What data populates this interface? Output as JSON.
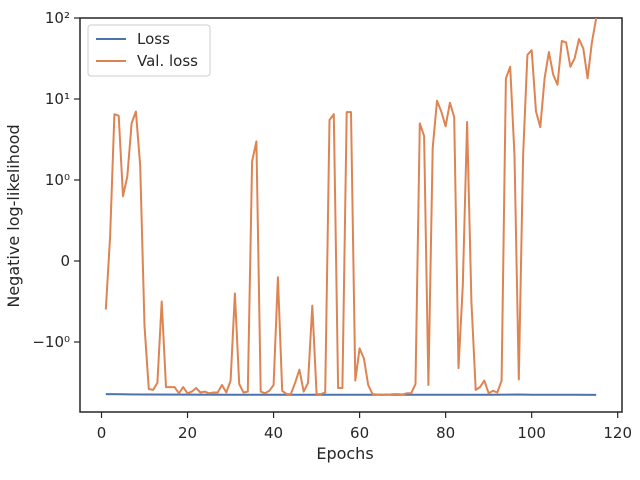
{
  "chart_data": {
    "type": "line",
    "xlabel": "Epochs",
    "ylabel": "Negative log-likelihood",
    "yscale": "symlog",
    "xlim": [
      -5,
      121
    ],
    "x_ticks": [
      0,
      20,
      40,
      60,
      80,
      100,
      120
    ],
    "y_ticks": [
      {
        "value": 100,
        "label": "10²"
      },
      {
        "value": 10,
        "label": "10¹"
      },
      {
        "value": 1,
        "label": "10⁰"
      },
      {
        "value": 0,
        "label": "0"
      },
      {
        "value": -1,
        "label": "−10⁰"
      }
    ],
    "grid": false,
    "legend_position": "top-left",
    "series": [
      {
        "name": "Loss",
        "color": "#4c72b0",
        "x": [
          1,
          5,
          10,
          20,
          30,
          40,
          50,
          60,
          70,
          80,
          90,
          97,
          100,
          110,
          115
        ],
        "y": [
          -4.4,
          -4.42,
          -4.45,
          -4.46,
          -4.47,
          -4.47,
          -4.48,
          -4.48,
          -4.48,
          -4.48,
          -4.49,
          -4.45,
          -4.48,
          -4.49,
          -4.5
        ]
      },
      {
        "name": "Val. loss",
        "color": "#dd8452",
        "x": [
          1,
          2,
          3,
          4,
          5,
          6,
          7,
          8,
          9,
          10,
          11,
          12,
          13,
          14,
          15,
          16,
          17,
          18,
          19,
          20,
          21,
          22,
          23,
          24,
          25,
          26,
          27,
          28,
          29,
          30,
          31,
          32,
          33,
          34,
          35,
          36,
          37,
          38,
          39,
          40,
          41,
          42,
          43,
          44,
          45,
          46,
          47,
          48,
          49,
          50,
          51,
          52,
          53,
          54,
          55,
          56,
          57,
          58,
          59,
          60,
          61,
          62,
          63,
          64,
          65,
          66,
          67,
          68,
          69,
          70,
          71,
          72,
          73,
          74,
          75,
          76,
          77,
          78,
          79,
          80,
          81,
          82,
          83,
          84,
          85,
          86,
          87,
          88,
          89,
          90,
          91,
          92,
          93,
          94,
          95,
          96,
          97,
          98,
          99,
          100,
          101,
          102,
          103,
          104,
          105,
          106,
          107,
          108,
          109,
          110,
          111,
          112,
          113,
          114,
          115
        ],
        "y": [
          -0.6,
          0.3,
          6.5,
          6.2,
          0.8,
          1.1,
          5.0,
          7.0,
          1.5,
          -0.8,
          -3.8,
          -3.9,
          -3.2,
          -0.5,
          -3.6,
          -3.6,
          -3.6,
          -4.3,
          -3.6,
          -4.3,
          -4.1,
          -3.7,
          -4.2,
          -4.1,
          -4.3,
          -4.2,
          -4.2,
          -3.4,
          -4.2,
          -3.0,
          -0.4,
          -3.3,
          -4.2,
          -4.1,
          1.7,
          3.0,
          -4.1,
          -4.3,
          -4.0,
          -3.4,
          -0.2,
          -4.0,
          -4.4,
          -4.4,
          -3.2,
          -2.2,
          -4.1,
          -3.2,
          -0.55,
          -4.4,
          -4.4,
          -4.2,
          5.5,
          6.5,
          -3.7,
          -3.7,
          6.9,
          6.9,
          -3.0,
          -1.2,
          -1.6,
          -3.4,
          -4.4,
          -4.45,
          -4.5,
          -4.45,
          -4.45,
          -4.4,
          -4.4,
          -4.45,
          -4.3,
          -4.3,
          -3.3,
          5.0,
          3.5,
          -3.4,
          2.5,
          9.5,
          7.0,
          4.6,
          9.0,
          6.0,
          -2.1,
          -0.3,
          5.2,
          -0.5,
          -3.9,
          -3.6,
          -3.0,
          -4.3,
          -4.0,
          -4.2,
          -3.0,
          18.0,
          25.0,
          2.0,
          -2.9,
          2.0,
          35.0,
          40.0,
          7.0,
          4.5,
          18.0,
          38.0,
          20.0,
          15.0,
          52.0,
          50.0,
          25.0,
          32.0,
          55.0,
          42.0,
          18.0,
          50.0,
          100.0
        ]
      }
    ]
  }
}
